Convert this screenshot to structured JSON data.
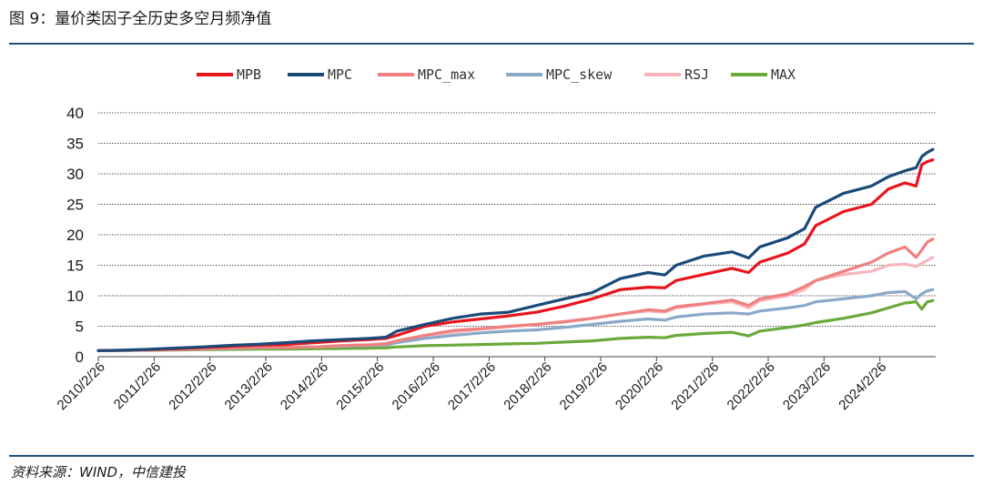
{
  "header": {
    "title": "图 9：量价类因子全历史多空月频净值"
  },
  "footer": {
    "source": "资料来源：WIND，中信建投"
  },
  "chart_data": {
    "type": "line",
    "title": "",
    "xlabel": "",
    "ylabel": "",
    "ylim": [
      0,
      40
    ],
    "yticks": [
      0,
      5,
      10,
      15,
      20,
      25,
      30,
      35,
      40
    ],
    "grid": "horizontal-dotted",
    "legend_position": "top-center",
    "x_tick_labels": [
      "2010/2/26",
      "2011/2/26",
      "2012/2/26",
      "2013/2/26",
      "2014/2/26",
      "2015/2/26",
      "2016/2/26",
      "2017/2/26",
      "2018/2/26",
      "2019/2/26",
      "2020/2/26",
      "2021/2/26",
      "2022/2/26",
      "2023/2/26",
      "2024/2/26"
    ],
    "x": [
      2010.15,
      2010.5,
      2011.0,
      2011.5,
      2012.0,
      2012.5,
      2013.0,
      2013.5,
      2014.0,
      2014.5,
      2015.0,
      2015.3,
      2015.5,
      2016.0,
      2016.5,
      2017.0,
      2017.5,
      2018.0,
      2018.5,
      2019.0,
      2019.5,
      2020.0,
      2020.3,
      2020.5,
      2021.0,
      2021.5,
      2021.8,
      2022.0,
      2022.5,
      2022.8,
      2023.0,
      2023.5,
      2024.0,
      2024.3,
      2024.6,
      2024.8,
      2024.9,
      2025.0,
      2025.1
    ],
    "series": [
      {
        "name": "MPB",
        "color": "#e8141c",
        "values": [
          1.0,
          1.05,
          1.15,
          1.3,
          1.5,
          1.7,
          1.9,
          2.0,
          2.3,
          2.6,
          2.8,
          3.0,
          3.5,
          5.0,
          5.7,
          6.2,
          6.7,
          7.3,
          8.3,
          9.5,
          11.0,
          11.4,
          11.3,
          12.5,
          13.5,
          14.5,
          13.8,
          15.5,
          17.0,
          18.5,
          21.5,
          23.8,
          25.0,
          27.5,
          28.5,
          28.0,
          31.5,
          32.0,
          32.3
        ]
      },
      {
        "name": "MPC",
        "color": "#1a4a78",
        "values": [
          1.0,
          1.05,
          1.2,
          1.4,
          1.6,
          1.85,
          2.05,
          2.3,
          2.6,
          2.8,
          3.0,
          3.2,
          4.2,
          5.3,
          6.3,
          7.0,
          7.3,
          8.4,
          9.5,
          10.5,
          12.8,
          13.8,
          13.4,
          15.0,
          16.5,
          17.2,
          16.2,
          18.0,
          19.5,
          21.0,
          24.5,
          26.8,
          28.0,
          29.5,
          30.5,
          31.0,
          32.8,
          33.5,
          34.0
        ]
      },
      {
        "name": "MPC_max",
        "color": "#f08080",
        "values": [
          1.0,
          1.02,
          1.1,
          1.2,
          1.3,
          1.4,
          1.5,
          1.5,
          1.6,
          1.8,
          1.9,
          2.1,
          2.6,
          3.5,
          4.3,
          4.6,
          5.0,
          5.3,
          5.7,
          6.3,
          7.0,
          7.7,
          7.5,
          8.2,
          8.7,
          9.3,
          8.4,
          9.5,
          10.3,
          11.5,
          12.5,
          14.0,
          15.5,
          17.0,
          18.0,
          16.3,
          17.5,
          18.8,
          19.3
        ]
      },
      {
        "name": "MPC_skew",
        "color": "#8aa9c7",
        "values": [
          1.0,
          1.02,
          1.08,
          1.15,
          1.25,
          1.35,
          1.45,
          1.5,
          1.6,
          1.7,
          1.8,
          1.9,
          2.3,
          3.0,
          3.5,
          3.9,
          4.2,
          4.4,
          4.8,
          5.3,
          5.8,
          6.2,
          6.0,
          6.5,
          7.0,
          7.2,
          7.0,
          7.5,
          8.0,
          8.4,
          9.0,
          9.5,
          10.0,
          10.5,
          10.7,
          9.5,
          10.3,
          10.8,
          11.0
        ]
      },
      {
        "name": "RSJ",
        "color": "#f7b6bd",
        "values": [
          1.0,
          1.02,
          1.1,
          1.2,
          1.3,
          1.4,
          1.5,
          1.5,
          1.6,
          1.8,
          2.0,
          2.2,
          2.6,
          3.5,
          4.0,
          4.5,
          4.9,
          5.3,
          5.8,
          6.3,
          7.0,
          7.5,
          7.3,
          8.0,
          8.6,
          9.0,
          8.0,
          9.2,
          10.0,
          11.0,
          12.5,
          13.5,
          14.0,
          15.0,
          15.2,
          14.8,
          15.3,
          15.8,
          16.3
        ]
      },
      {
        "name": "MAX",
        "color": "#6aaa3a",
        "values": [
          1.0,
          1.02,
          1.05,
          1.1,
          1.15,
          1.2,
          1.25,
          1.25,
          1.3,
          1.35,
          1.4,
          1.45,
          1.6,
          1.8,
          1.9,
          2.0,
          2.1,
          2.2,
          2.4,
          2.6,
          3.0,
          3.2,
          3.1,
          3.5,
          3.8,
          4.0,
          3.4,
          4.2,
          4.8,
          5.2,
          5.6,
          6.3,
          7.2,
          8.0,
          8.8,
          9.0,
          7.8,
          9.0,
          9.2
        ]
      }
    ]
  }
}
